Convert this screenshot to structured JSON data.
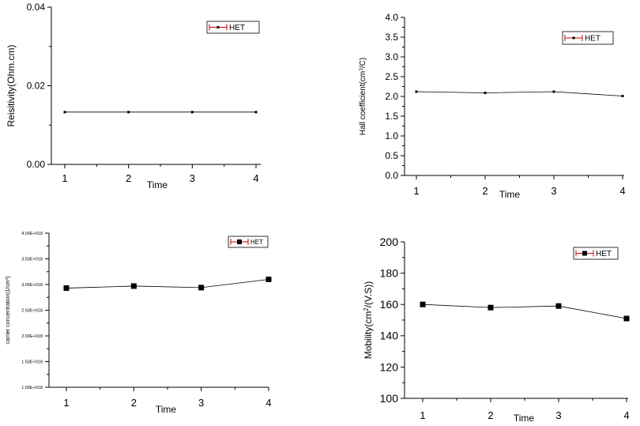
{
  "chart_data": [
    {
      "type": "line",
      "xlabel": "Time",
      "ylabel": "Reisitivity(Ohm.cm)",
      "ylabel_sup": "",
      "ylabel_after": "",
      "x": [
        1,
        2,
        3,
        4
      ],
      "xticks": [
        "1",
        "2",
        "3",
        "4"
      ],
      "yticks": [
        0,
        0.02,
        0.04
      ],
      "ytick_labels": [
        "0.00",
        "0.02",
        "0.04"
      ],
      "ylim": [
        0,
        0.04
      ],
      "series": [
        {
          "name": "HET",
          "values": [
            0.0133,
            0.0133,
            0.0133,
            0.0133
          ]
        }
      ],
      "marker": "small-square",
      "color": "#000000",
      "legend_frame_color": "#cc0000",
      "legend_position": "top-right"
    },
    {
      "type": "line",
      "xlabel": "Time",
      "ylabel": "Hall coefficient(cm",
      "ylabel_sup": "3",
      "ylabel_after": "/C)",
      "x": [
        1,
        2,
        3,
        4
      ],
      "xticks": [
        "1",
        "2",
        "3",
        "4"
      ],
      "yticks": [
        0,
        0.5,
        1,
        1.5,
        2,
        2.5,
        3,
        3.5,
        4
      ],
      "ytick_labels": [
        "0.0",
        "0.5",
        "1.0",
        "1.5",
        "2.0",
        "2.5",
        "3.0",
        "3.5",
        "4.0"
      ],
      "ylim": [
        0,
        4
      ],
      "series": [
        {
          "name": "HET",
          "values": [
            2.12,
            2.09,
            2.12,
            2.01
          ]
        }
      ],
      "marker": "small-square",
      "color": "#000000",
      "legend_frame_color": "#cc0000",
      "legend_position": "top-right"
    },
    {
      "type": "line",
      "xlabel": "Time",
      "ylabel": "carrier concentration(1/cm",
      "ylabel_sup": "3",
      "ylabel_after": ")",
      "x": [
        1,
        2,
        3,
        4
      ],
      "xticks": [
        "1",
        "2",
        "3",
        "4"
      ],
      "yticks": [
        1e+18,
        1.5e+18,
        2e+18,
        2.5e+18,
        3e+18,
        3.5e+18,
        4e+18
      ],
      "ytick_labels": [
        "1.00E+018",
        "1.50E+018",
        "2.00E+018",
        "2.50E+018",
        "3.00E+018",
        "3.50E+018",
        "4.00E+018"
      ],
      "ylim": [
        1e+18,
        4e+18
      ],
      "series": [
        {
          "name": "HET",
          "values": [
            2.93e+18,
            2.97e+18,
            2.94e+18,
            3.1e+18
          ]
        }
      ],
      "marker": "square",
      "color": "#000000",
      "legend_frame_color": "#cc0000",
      "legend_position": "top-right"
    },
    {
      "type": "line",
      "xlabel": "Time",
      "ylabel": "Mobility(cm",
      "ylabel_sup": "2",
      "ylabel_after": "/(V.S))",
      "x": [
        1,
        2,
        3,
        4
      ],
      "xticks": [
        "1",
        "2",
        "3",
        "4"
      ],
      "yticks": [
        100,
        120,
        140,
        160,
        180,
        200
      ],
      "ytick_labels": [
        "100",
        "120",
        "140",
        "160",
        "180",
        "200"
      ],
      "ylim": [
        100,
        200
      ],
      "series": [
        {
          "name": "HET",
          "values": [
            160,
            158,
            159,
            151
          ]
        }
      ],
      "marker": "square",
      "color": "#000000",
      "legend_frame_color": "#cc0000",
      "legend_position": "top-right"
    }
  ]
}
